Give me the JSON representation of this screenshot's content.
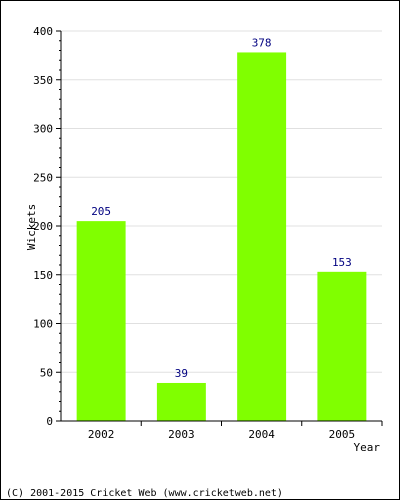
{
  "chart_data": {
    "type": "bar",
    "categories": [
      "2002",
      "2003",
      "2004",
      "2005"
    ],
    "values": [
      205,
      39,
      378,
      153
    ],
    "data_labels": [
      "205",
      "39",
      "378",
      "153"
    ],
    "xlabel": "Year",
    "ylabel": "Wickets",
    "ylim": [
      0,
      400
    ],
    "yticks": [
      0,
      50,
      100,
      150,
      200,
      250,
      300,
      350,
      400
    ],
    "grid": true,
    "bar_color": "#80ff00",
    "label_color": "#000080"
  },
  "footer": {
    "copyright": "(C) 2001-2015 Cricket Web (www.cricketweb.net)"
  }
}
